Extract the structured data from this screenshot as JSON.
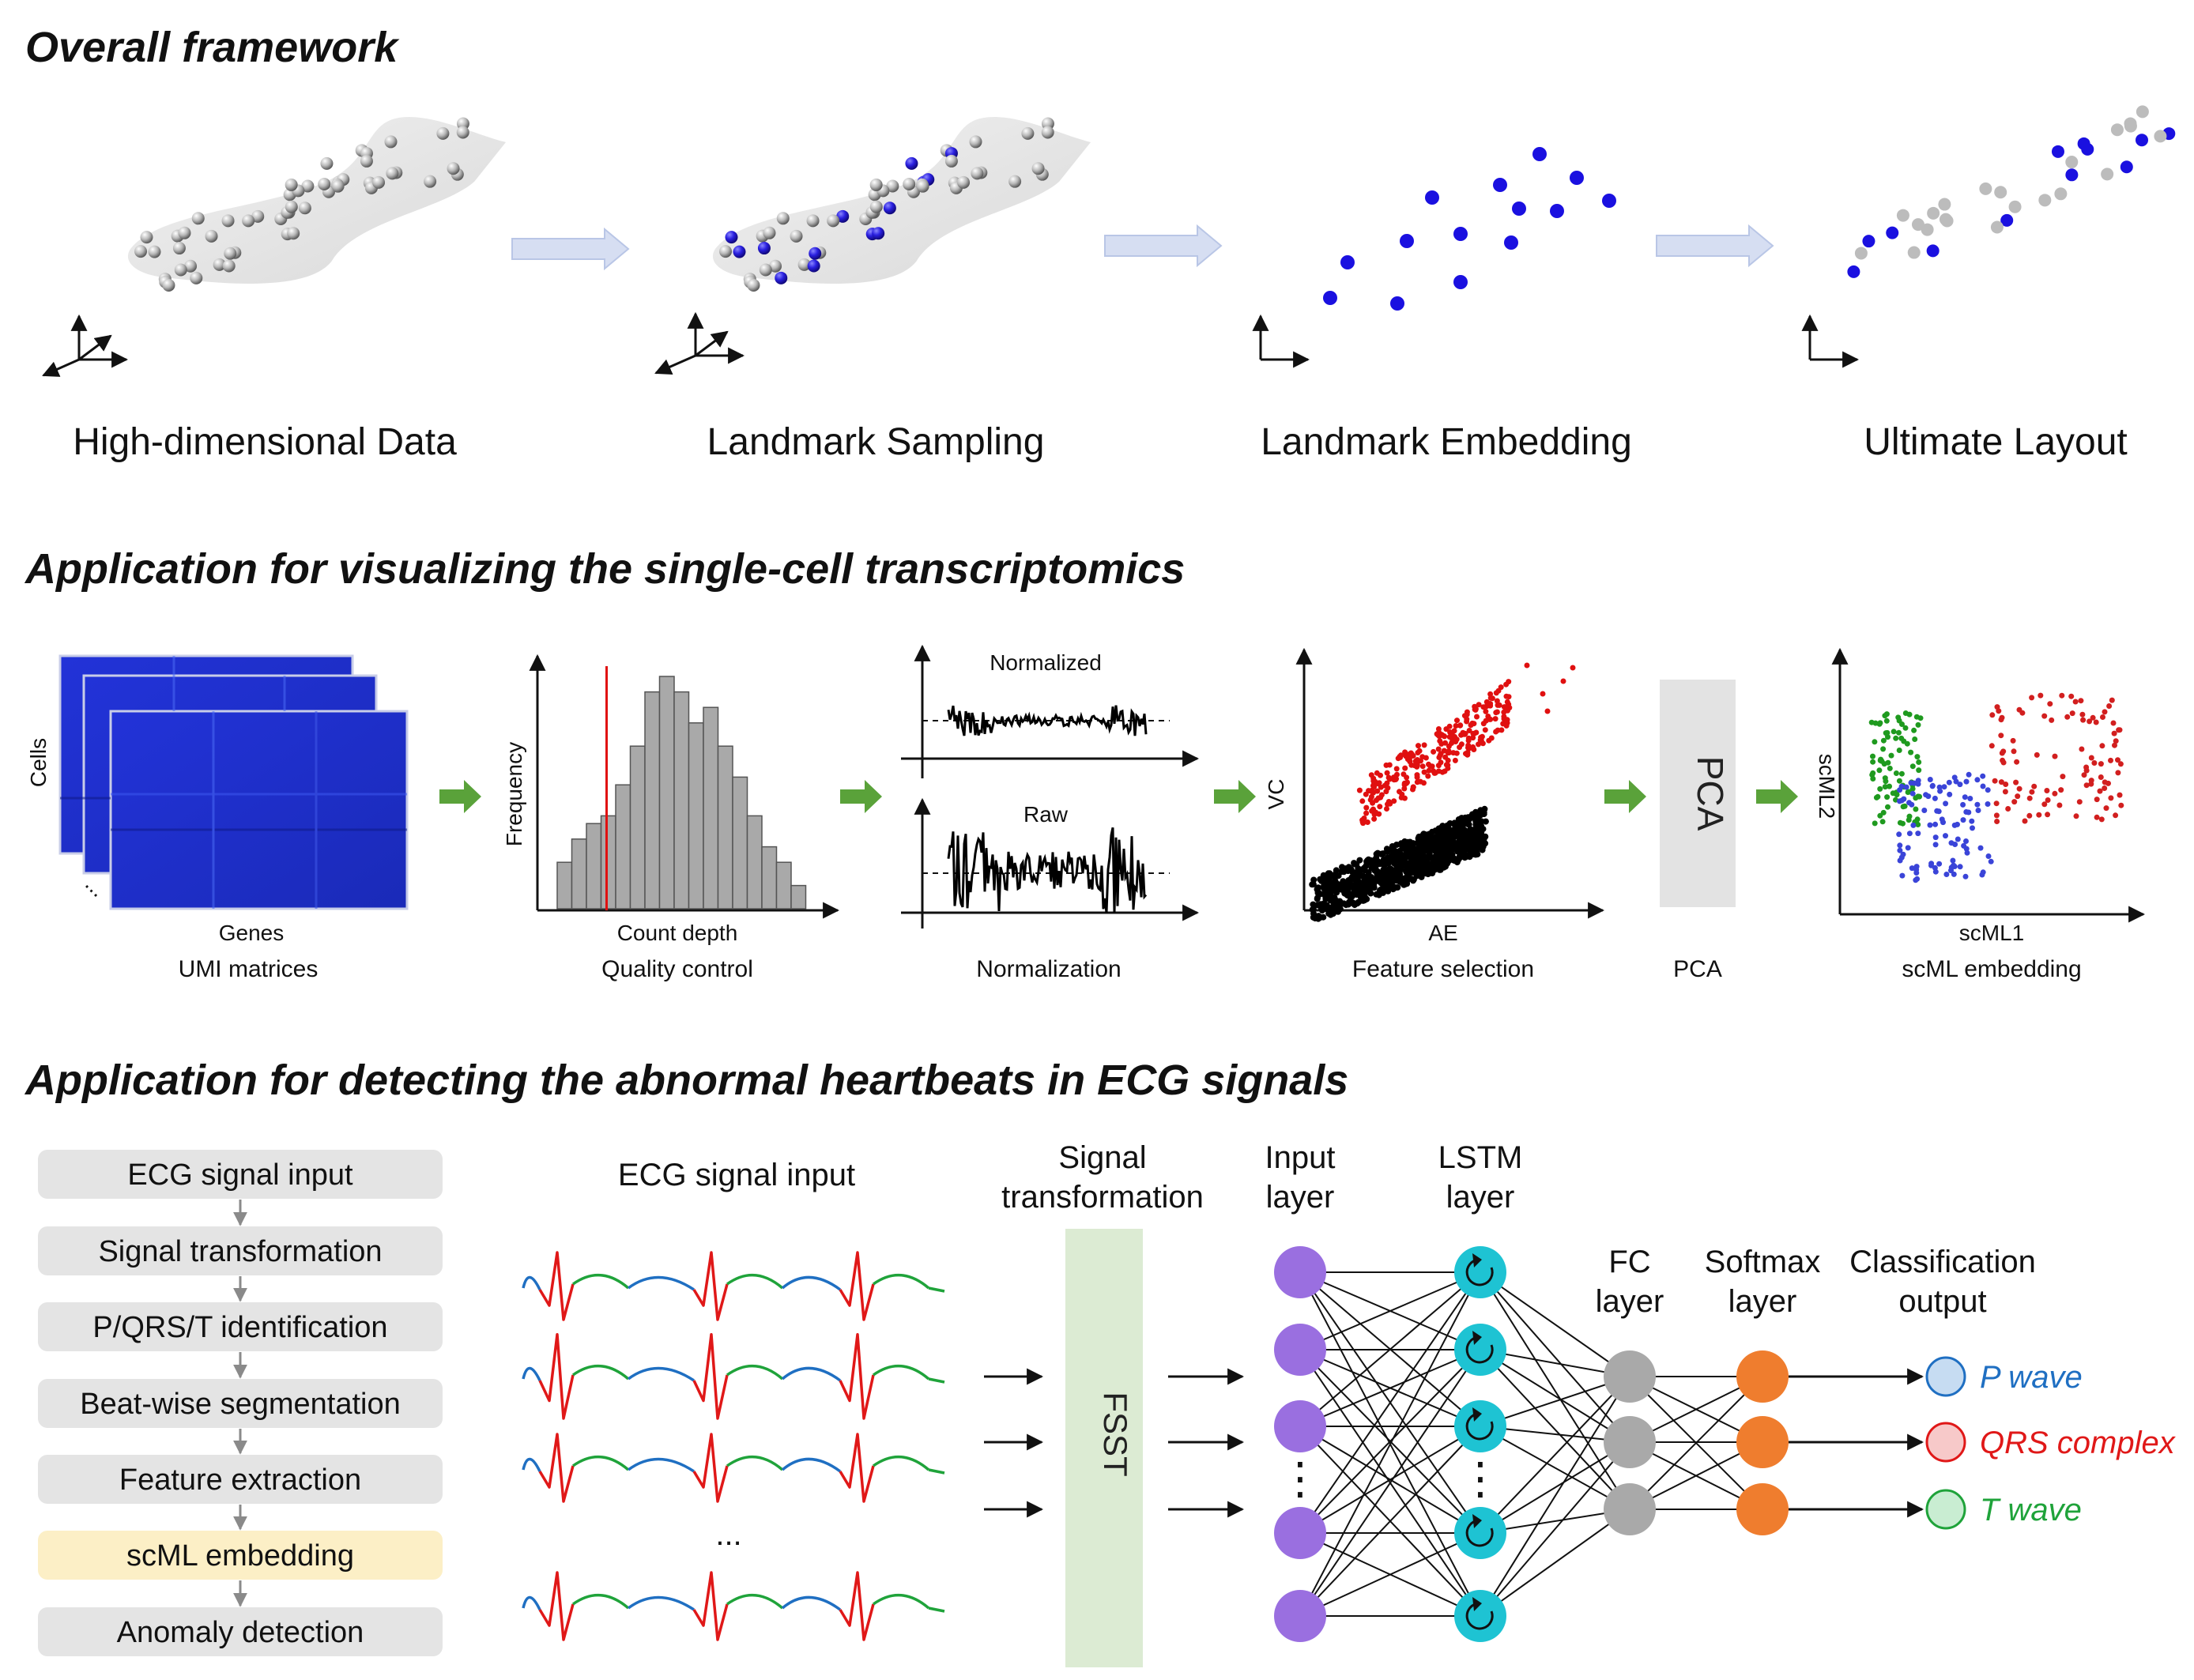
{
  "sections": {
    "overall": "Overall framework",
    "single_cell": "Application for visualizing the single-cell transcriptomics",
    "ecg": "Application for detecting the abnormal heartbeats in ECG signals"
  },
  "framework": {
    "stages": [
      "High-dimensional Data",
      "Landmark Sampling",
      "Landmark Embedding",
      "Ultimate Layout"
    ],
    "colors": {
      "landmark": "#1a10e0",
      "point": "#bcbcbc",
      "arrow": "#cfd8ee"
    }
  },
  "single_cell": {
    "umi": {
      "y_label": "Cells",
      "x_label": "Genes",
      "caption": "UMI matrices",
      "dots": "..."
    },
    "qc": {
      "y_label": "Frequency",
      "x_label": "Count depth",
      "caption": "Quality control",
      "histogram_values": [
        6,
        9,
        11,
        12,
        16,
        21,
        28,
        30,
        28,
        24,
        26,
        21,
        17,
        12,
        8,
        6,
        3
      ],
      "threshold_bin": 3
    },
    "norm": {
      "top_label": "Normalized",
      "bottom_label": "Raw",
      "caption": "Normalization"
    },
    "feature": {
      "y_label": "VC",
      "x_label": "AE",
      "caption": "Feature selection"
    },
    "pca": {
      "box_label": "PCA",
      "caption": "PCA"
    },
    "scml": {
      "y_label": "scML2",
      "x_label": "scML1",
      "caption": "scML embedding",
      "cluster_colors": [
        "#1f9a1f",
        "#3a44d8",
        "#d21f1f"
      ]
    },
    "arrow_color": "#5aa23a"
  },
  "ecg": {
    "steps": [
      "ECG signal input",
      "Signal transformation",
      "P/QRS/T identification",
      "Beat-wise segmentation",
      "Feature extraction",
      "scML embedding",
      "Anomaly detection"
    ],
    "highlight_step": 5,
    "signal_title": "ECG signal input",
    "signal_dots": "...",
    "transform_title": [
      "Signal",
      "transformation"
    ],
    "fsst_label": "FSST",
    "layers": {
      "input": [
        "Input",
        "layer"
      ],
      "lstm": [
        "LSTM",
        "layer"
      ],
      "fc": [
        "FC",
        "layer"
      ],
      "softmax": [
        "Softmax",
        "layer"
      ],
      "output": [
        "Classification",
        "output"
      ]
    },
    "vdots": "⋮",
    "outputs": [
      {
        "label": "P wave",
        "color": "#1f6fc2",
        "fill": "#c6dcf2"
      },
      {
        "label": "QRS complex",
        "color": "#e01818",
        "fill": "#f7c9c9"
      },
      {
        "label": "T wave",
        "color": "#1fa33a",
        "fill": "#c9edd2"
      }
    ],
    "colors": {
      "input_node": "#9a6fe0",
      "lstm_node": "#1ec3d3",
      "fc_node": "#a9a9a9",
      "softmax_node": "#ef7d2e",
      "wave_p": "#1f6fc2",
      "wave_qrs": "#e01818",
      "wave_t": "#1fa33a"
    }
  }
}
